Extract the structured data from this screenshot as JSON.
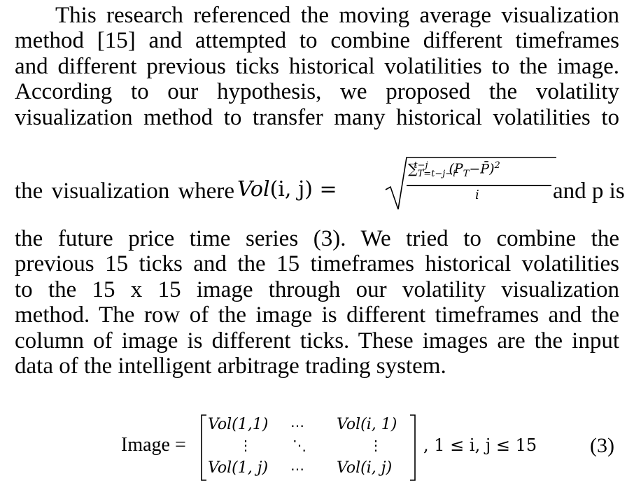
{
  "paragraph": {
    "lines_before": [
      "This research referenced the moving average visualization",
      "method [15] and attempted to combine different timeframes",
      "and different previous ticks historical volatilities to the image.",
      "According to our hypothesis, we proposed the volatility",
      "visualization method to transfer many historical volatilities to"
    ],
    "eq_prefix": "the visualization where",
    "eq_lhs_fn": "Vol",
    "eq_lhs_args": "(i, j) =",
    "eq_num_sum": "∑",
    "eq_num_sum_sub": "T=t−j−i",
    "eq_num_sum_sup": "t−j",
    "eq_num_term": "(P",
    "eq_num_term_sub": "T",
    "eq_num_term_rest": "−P̄)",
    "eq_num_term_sup": "2",
    "eq_den": "i",
    "eq_suffix": "and p is",
    "lines_after": [
      "the future price time series (3). We tried to combine the",
      "previous 15 ticks and the 15 timeframes historical volatilities",
      "to the 15 x 15 image through our volatility visualization",
      "method. The row of the image is different timeframes and the",
      "column of image is different ticks. These images are the input",
      "data of the intelligent arbitrage trading system."
    ]
  },
  "equation": {
    "label": "Image =",
    "matrix": {
      "top_left": "Vol(1,1)",
      "top_mid": "⋯",
      "top_right": "Vol(i, 1)",
      "mid_left": "⋮",
      "mid_mid": "⋱",
      "mid_right": "⋮",
      "bot_left": "Vol(1, j)",
      "bot_mid": "⋯",
      "bot_right": "Vol(i, j)"
    },
    "constraint": ", 1 ≤ i, j ≤ 15",
    "number": "(3)"
  }
}
